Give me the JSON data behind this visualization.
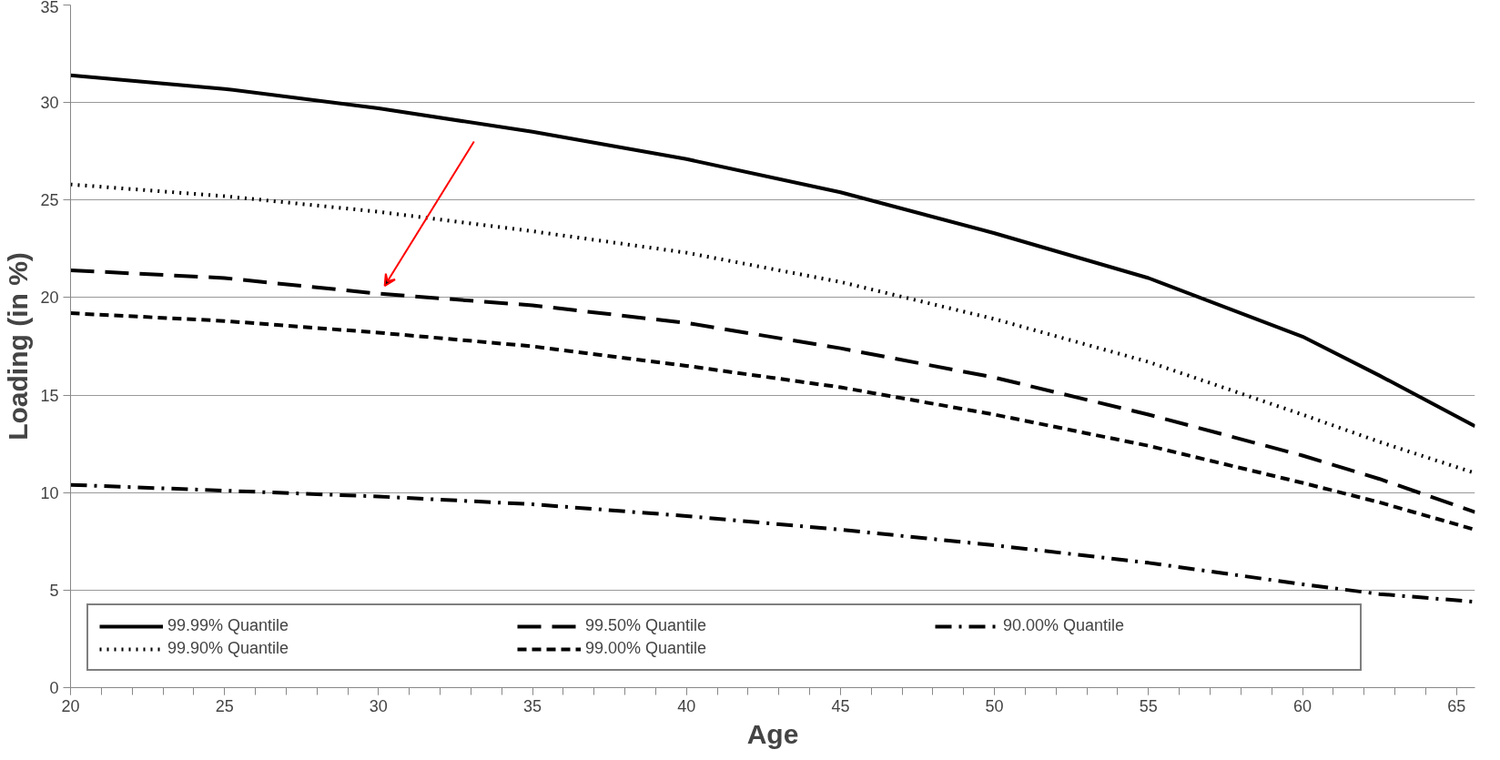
{
  "chart_data": {
    "type": "line",
    "xlabel": "Age",
    "ylabel": "Loading (in %)",
    "x": [
      20,
      25,
      30,
      35,
      40,
      45,
      50,
      55,
      60,
      62.5,
      65.6
    ],
    "series": [
      {
        "name": "99.99% Quantile",
        "color": "#000000",
        "line_style": "solid",
        "values": [
          31.4,
          30.7,
          29.7,
          28.5,
          27.1,
          25.4,
          23.3,
          21.0,
          18.0,
          16.0,
          13.4
        ]
      },
      {
        "name": "99.90% Quantile",
        "color": "#000000",
        "line_style": "dotted",
        "values": [
          25.8,
          25.2,
          24.4,
          23.4,
          22.3,
          20.8,
          18.9,
          16.7,
          14.0,
          12.6,
          11.0
        ]
      },
      {
        "name": "99.50% Quantile",
        "color": "#000000",
        "line_style": "longdash",
        "values": [
          21.4,
          21.0,
          20.2,
          19.6,
          18.7,
          17.4,
          15.9,
          14.0,
          11.9,
          10.7,
          9.0
        ]
      },
      {
        "name": "99.00% Quantile",
        "color": "#000000",
        "line_style": "dashed",
        "values": [
          19.2,
          18.8,
          18.2,
          17.5,
          16.5,
          15.4,
          14.0,
          12.4,
          10.5,
          9.5,
          8.1
        ]
      },
      {
        "name": "90.00% Quantile",
        "color": "#000000",
        "line_style": "dashdot",
        "values": [
          10.4,
          10.1,
          9.8,
          9.4,
          8.8,
          8.1,
          7.3,
          6.4,
          5.3,
          4.8,
          4.4
        ]
      }
    ],
    "xlim": [
      20,
      65.6
    ],
    "ylim": [
      0,
      35
    ],
    "xticks": [
      20,
      25,
      30,
      35,
      40,
      45,
      50,
      55,
      60,
      65
    ],
    "yticks": [
      0,
      5,
      10,
      15,
      20,
      25,
      30,
      35
    ],
    "grid": "y",
    "legend": "bottom left",
    "marker": "none"
  }
}
